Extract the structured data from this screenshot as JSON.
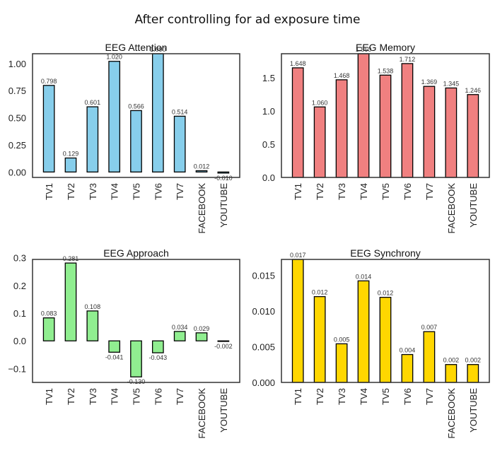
{
  "figure_title": "After controlling for ad exposure time",
  "chart_data": [
    {
      "type": "bar",
      "title": "EEG Attention",
      "xlabel": "",
      "ylabel": "",
      "categories": [
        "TV1",
        "TV2",
        "TV3",
        "TV4",
        "TV5",
        "TV6",
        "TV7",
        "FACEBOOK",
        "YOUTUBE"
      ],
      "values": [
        0.798,
        0.129,
        0.601,
        1.02,
        0.566,
        1.09,
        0.514,
        0.012,
        -0.01
      ],
      "data_labels": [
        "0.798",
        "0.129",
        "0.601",
        "1.020",
        "0.566",
        "1.090",
        "0.514",
        "0.012",
        "-0.010"
      ],
      "ylim": [
        -0.05,
        1.09
      ],
      "yticks": [
        0.0,
        0.25,
        0.5,
        0.75,
        1.0
      ],
      "ytick_labels": [
        "0.00",
        "0.25",
        "0.50",
        "0.75",
        "1.00"
      ],
      "color": "#87CEEB",
      "edgecolor": "#000000",
      "grid": false,
      "legend": "none"
    },
    {
      "type": "bar",
      "title": "EEG Memory",
      "xlabel": "",
      "ylabel": "",
      "categories": [
        "TV1",
        "TV2",
        "TV3",
        "TV4",
        "TV5",
        "TV6",
        "TV7",
        "FACEBOOK",
        "YOUTUBE"
      ],
      "values": [
        1.648,
        1.06,
        1.468,
        1.86,
        1.538,
        1.712,
        1.369,
        1.345,
        1.246
      ],
      "data_labels": [
        "1.648",
        "1.060",
        "1.468",
        "1.860",
        "1.538",
        "1.712",
        "1.369",
        "1.345",
        "1.246"
      ],
      "ylim": [
        0.0,
        1.86
      ],
      "yticks": [
        0.0,
        0.5,
        1.0,
        1.5
      ],
      "ytick_labels": [
        "0.0",
        "0.5",
        "1.0",
        "1.5"
      ],
      "color": "#F08080",
      "edgecolor": "#000000",
      "grid": false,
      "legend": "none"
    },
    {
      "type": "bar",
      "title": "EEG Approach",
      "xlabel": "",
      "ylabel": "",
      "categories": [
        "TV1",
        "TV2",
        "TV3",
        "TV4",
        "TV5",
        "TV6",
        "TV7",
        "FACEBOOK",
        "YOUTUBE"
      ],
      "values": [
        0.083,
        0.281,
        0.108,
        -0.041,
        -0.13,
        -0.043,
        0.034,
        0.029,
        -0.002
      ],
      "data_labels": [
        "0.083",
        "0.281",
        "0.108",
        "-0.041",
        "-0.130",
        "-0.043",
        "0.034",
        "0.029",
        "-0.002"
      ],
      "ylim": [
        -0.15,
        0.294
      ],
      "yticks": [
        -0.1,
        0.0,
        0.1,
        0.2,
        0.3
      ],
      "ytick_labels": [
        "−0.1",
        "0.0",
        "0.1",
        "0.2",
        "0.3"
      ],
      "color": "#90EE90",
      "edgecolor": "#000000",
      "grid": false,
      "legend": "none"
    },
    {
      "type": "bar",
      "title": "EEG Synchrony",
      "xlabel": "",
      "ylabel": "",
      "categories": [
        "TV1",
        "TV2",
        "TV3",
        "TV4",
        "TV5",
        "TV6",
        "TV7",
        "FACEBOOK",
        "YOUTUBE"
      ],
      "values": [
        0.0172,
        0.012,
        0.0054,
        0.0142,
        0.0119,
        0.0039,
        0.0071,
        0.0025,
        0.0025
      ],
      "data_labels": [
        "0.017",
        "0.012",
        "0.005",
        "0.014",
        "0.012",
        "0.004",
        "0.007",
        "0.002",
        "0.002"
      ],
      "ylim": [
        0.0,
        0.0172
      ],
      "yticks": [
        0.0,
        0.005,
        0.01,
        0.015
      ],
      "ytick_labels": [
        "0.000",
        "0.005",
        "0.010",
        "0.015"
      ],
      "color": "#FFD700",
      "edgecolor": "#000000",
      "grid": false,
      "legend": "none"
    }
  ]
}
